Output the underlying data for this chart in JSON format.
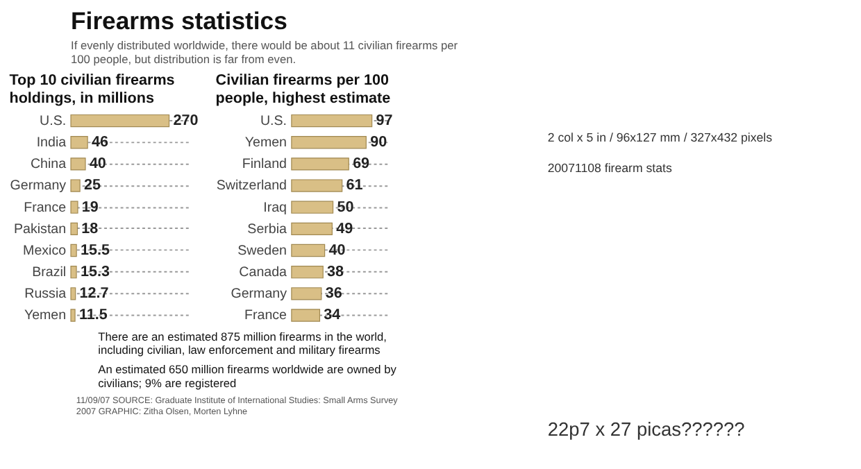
{
  "chart_data": [
    {
      "type": "bar",
      "orientation": "horizontal",
      "title": "Top 10 civilian firearms holdings, in millions",
      "categories": [
        "U.S.",
        "India",
        "China",
        "Germany",
        "France",
        "Pakistan",
        "Mexico",
        "Brazil",
        "Russia",
        "Yemen"
      ],
      "values": [
        270,
        46,
        40,
        25,
        19,
        18,
        15.5,
        15.3,
        12.7,
        11.5
      ],
      "color": "#d9bf86",
      "data_labels": true,
      "grid": "y",
      "annotations": [
        "Firearms statistics",
        "If evenly distributed worldwide, there would be about 11 civilian firearms per 100 people, but distribution is far from even.",
        "There are an estimated 875 million firearms in the world, including civilian, law enforcement and military firearms",
        "An estimated 650 million firearms worldwide are owned by civilians; 9% are registered",
        "11/09/07 SOURCE: Graduate Institute of International Studies: Small Arms Survey 2007 GRAPHIC: Zitha Olsen, Morten Lyhne"
      ]
    },
    {
      "type": "bar",
      "orientation": "horizontal",
      "title": "Civilian firearms per 100 people, highest estimate",
      "categories": [
        "U.S.",
        "Yemen",
        "Finland",
        "Switzerland",
        "Iraq",
        "Serbia",
        "Sweden",
        "Canada",
        "Germany",
        "France"
      ],
      "values": [
        97,
        90,
        69,
        61,
        50,
        49,
        40,
        38,
        36,
        34
      ],
      "color": "#d9bf86",
      "data_labels": true,
      "grid": "y",
      "annotations": [
        "2 col x 5 in / 96x127 mm / 327x432 pixels",
        "20071108 firearm stats",
        "22p7 x 27 picas??????"
      ]
    }
  ]
}
